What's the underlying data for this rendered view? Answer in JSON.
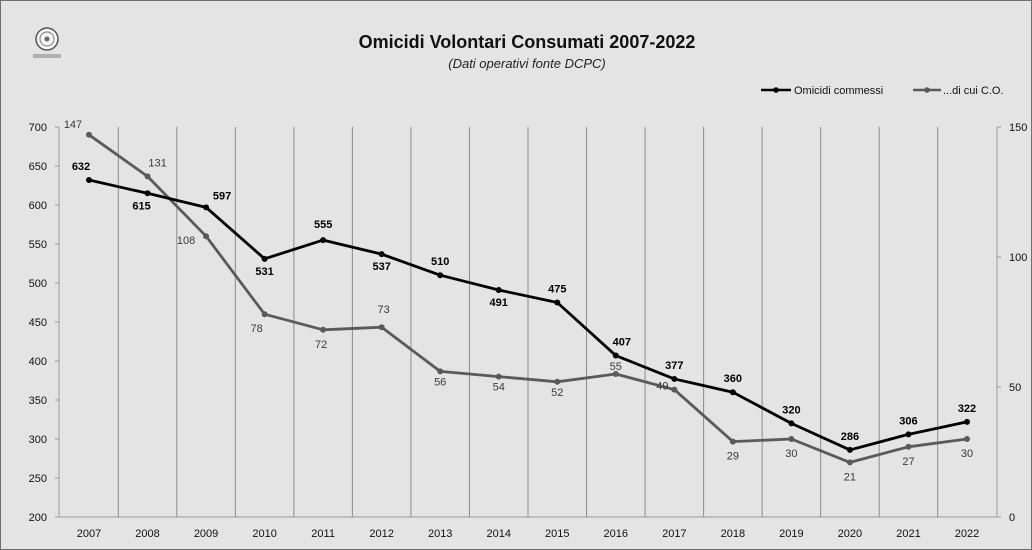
{
  "chart_data": {
    "type": "line",
    "title": "Omicidi Volontari Consumati 2007-2022",
    "subtitle": "(Dati operativi fonte DCPC)",
    "x": [
      "2007",
      "2008",
      "2009",
      "2010",
      "2011",
      "2012",
      "2013",
      "2014",
      "2015",
      "2016",
      "2017",
      "2018",
      "2019",
      "2020",
      "2021",
      "2022"
    ],
    "series": [
      {
        "name": "Omicidi commessi",
        "axis": "left",
        "color": "#000000",
        "values": [
          632,
          615,
          597,
          531,
          555,
          537,
          510,
          491,
          475,
          407,
          377,
          360,
          320,
          286,
          306,
          322
        ]
      },
      {
        "name": "...di cui C.O.",
        "axis": "right",
        "color": "#5a5a5a",
        "values": [
          147,
          131,
          108,
          78,
          72,
          73,
          56,
          54,
          52,
          55,
          49,
          29,
          30,
          21,
          27,
          30
        ]
      }
    ],
    "y_left": {
      "min": 200,
      "max": 700,
      "ticks": [
        200,
        250,
        300,
        350,
        400,
        450,
        500,
        550,
        600,
        650,
        700
      ]
    },
    "y_right": {
      "min": 0,
      "max": 150,
      "ticks": [
        0,
        50,
        100,
        150
      ]
    },
    "legend_position": "top-right",
    "vertical_gridlines": true,
    "background": "#e4e4e4"
  }
}
